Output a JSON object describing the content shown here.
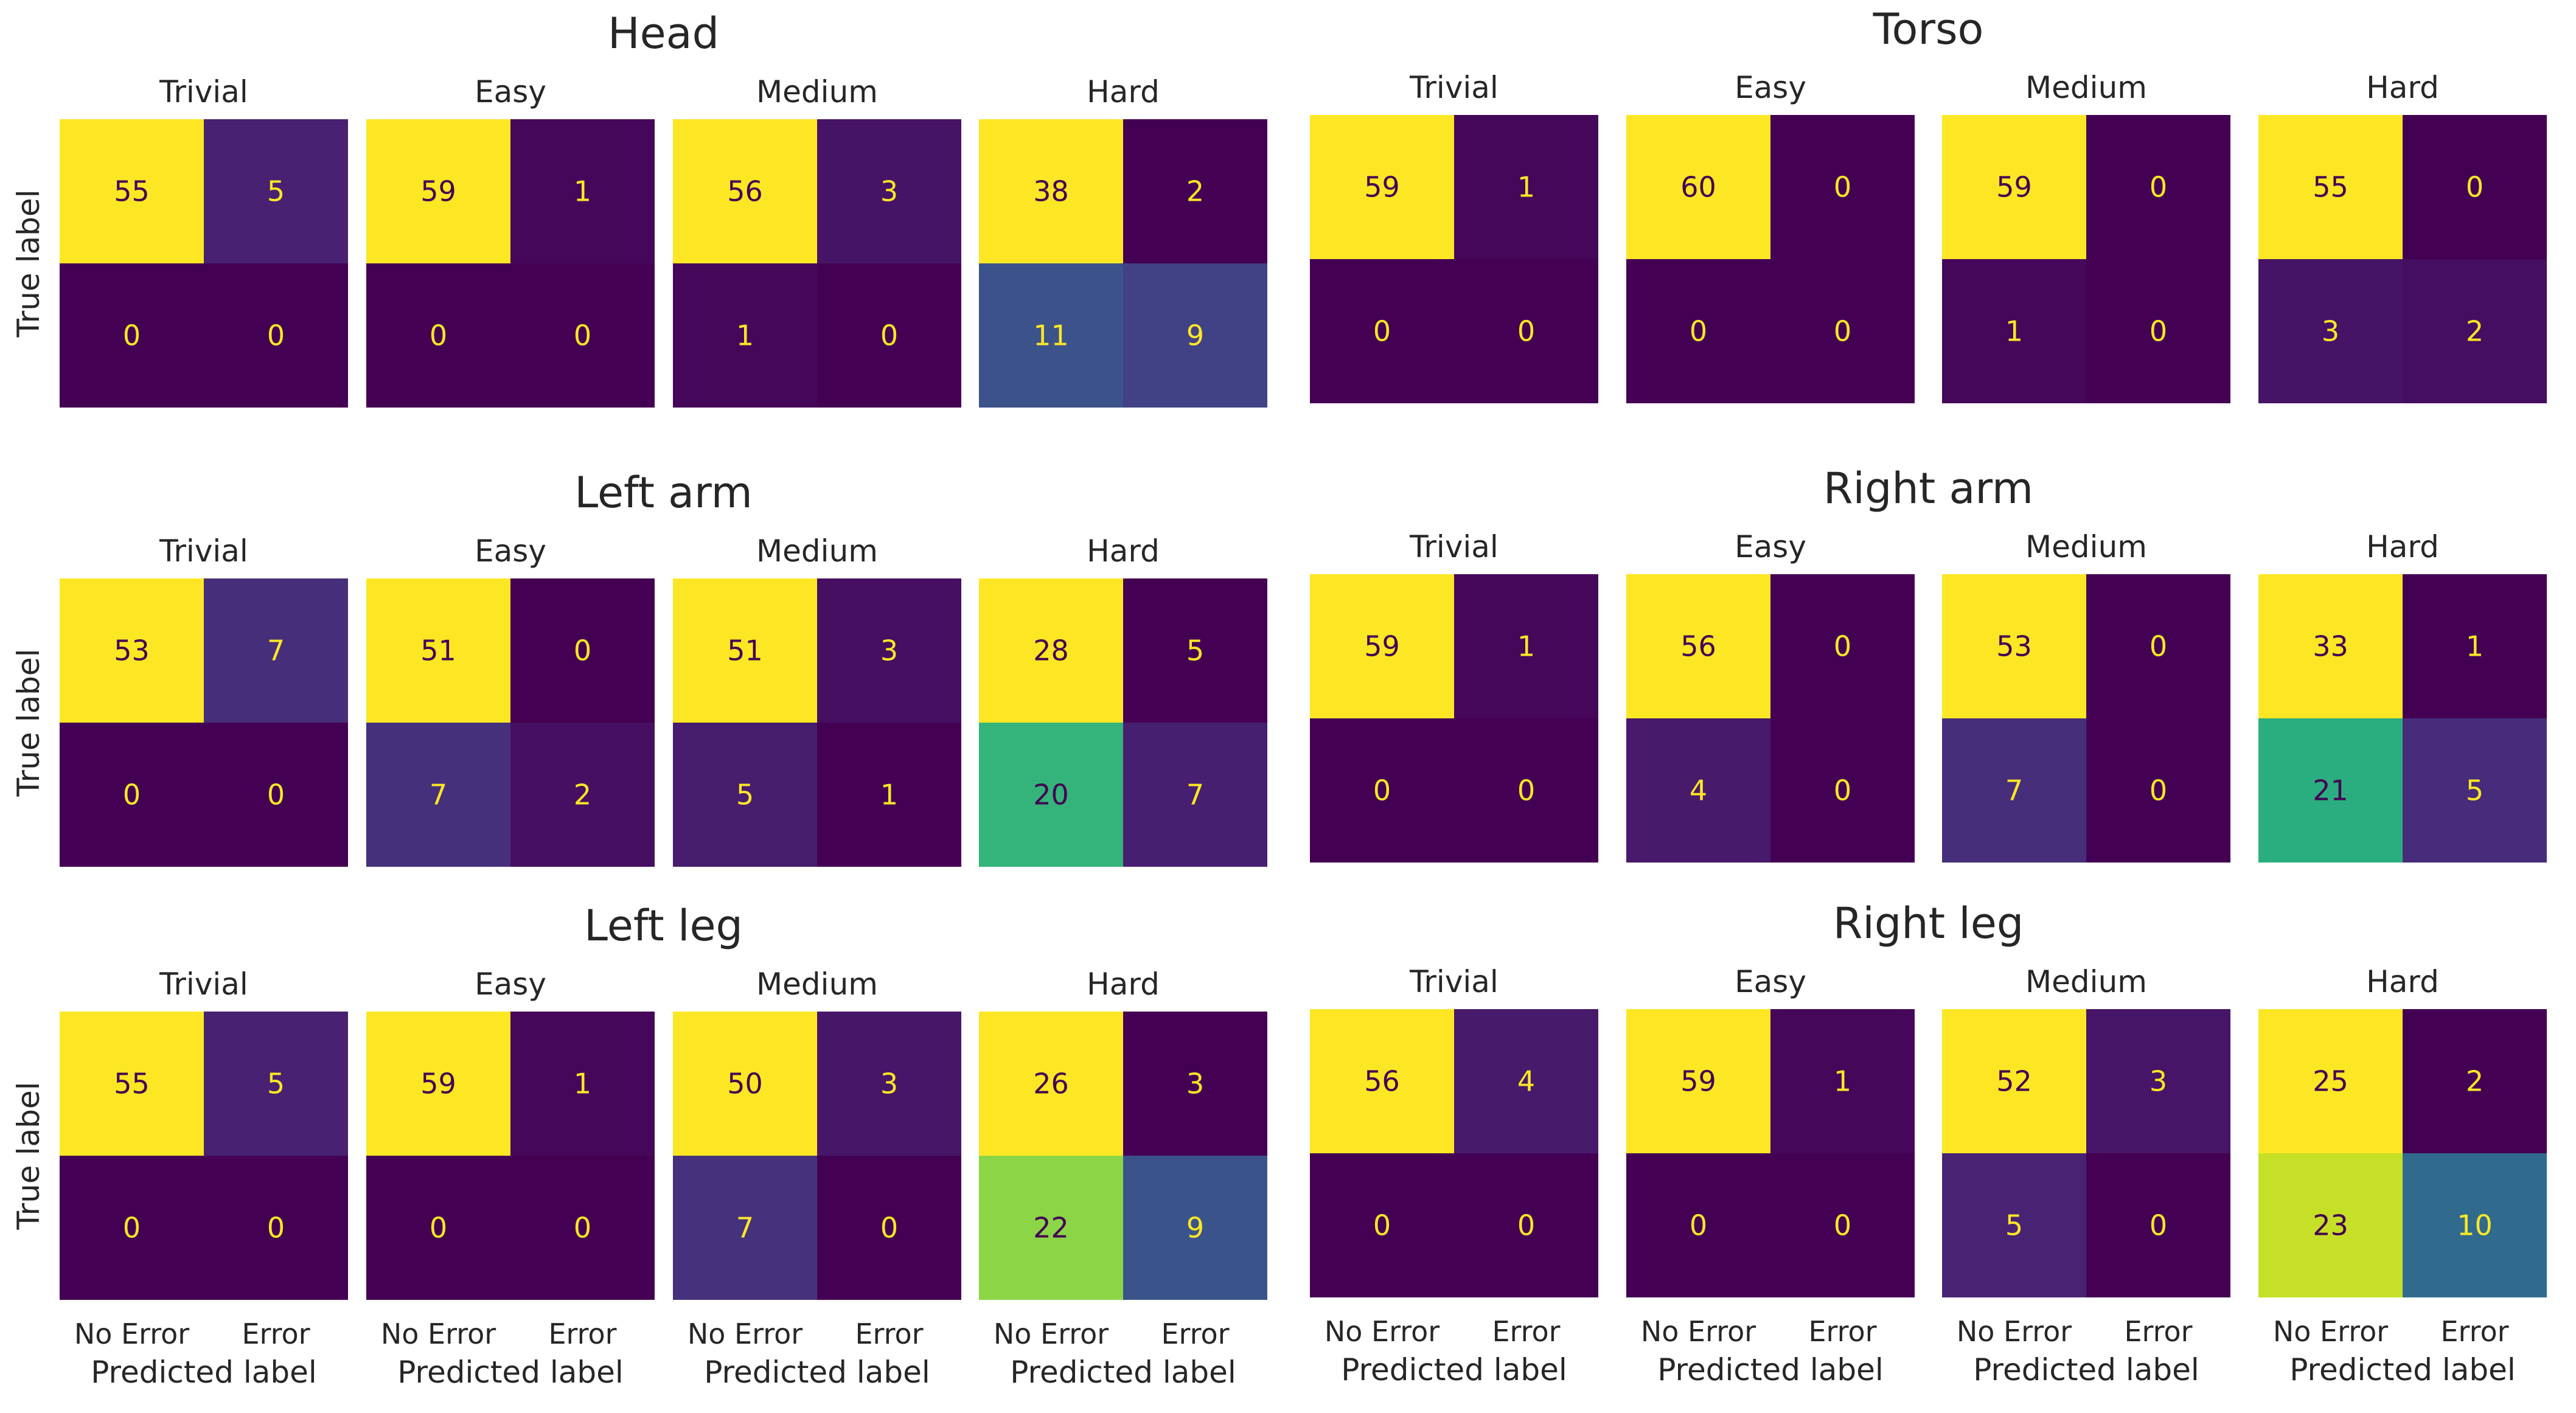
{
  "chart_data": {
    "type": "heatmap",
    "colormap": "viridis",
    "class_labels": [
      "No Error",
      "Error"
    ],
    "xlabel": "Predicted label",
    "ylabel": "True label",
    "difficulties": [
      "Trivial",
      "Easy",
      "Medium",
      "Hard"
    ],
    "panels": [
      {
        "title": "Head",
        "matrices": [
          {
            "difficulty": "Trivial",
            "values": [
              [
                55,
                5
              ],
              [
                0,
                0
              ]
            ]
          },
          {
            "difficulty": "Easy",
            "values": [
              [
                59,
                1
              ],
              [
                0,
                0
              ]
            ]
          },
          {
            "difficulty": "Medium",
            "values": [
              [
                56,
                3
              ],
              [
                1,
                0
              ]
            ]
          },
          {
            "difficulty": "Hard",
            "values": [
              [
                38,
                2
              ],
              [
                11,
                9
              ]
            ]
          }
        ]
      },
      {
        "title": "Torso",
        "matrices": [
          {
            "difficulty": "Trivial",
            "values": [
              [
                59,
                1
              ],
              [
                0,
                0
              ]
            ]
          },
          {
            "difficulty": "Easy",
            "values": [
              [
                60,
                0
              ],
              [
                0,
                0
              ]
            ]
          },
          {
            "difficulty": "Medium",
            "values": [
              [
                59,
                0
              ],
              [
                1,
                0
              ]
            ]
          },
          {
            "difficulty": "Hard",
            "values": [
              [
                55,
                0
              ],
              [
                3,
                2
              ]
            ]
          }
        ]
      },
      {
        "title": "Left arm",
        "matrices": [
          {
            "difficulty": "Trivial",
            "values": [
              [
                53,
                7
              ],
              [
                0,
                0
              ]
            ]
          },
          {
            "difficulty": "Easy",
            "values": [
              [
                51,
                0
              ],
              [
                7,
                2
              ]
            ]
          },
          {
            "difficulty": "Medium",
            "values": [
              [
                51,
                3
              ],
              [
                5,
                1
              ]
            ]
          },
          {
            "difficulty": "Hard",
            "values": [
              [
                28,
                5
              ],
              [
                20,
                7
              ]
            ]
          }
        ]
      },
      {
        "title": "Right arm",
        "matrices": [
          {
            "difficulty": "Trivial",
            "values": [
              [
                59,
                1
              ],
              [
                0,
                0
              ]
            ]
          },
          {
            "difficulty": "Easy",
            "values": [
              [
                56,
                0
              ],
              [
                4,
                0
              ]
            ]
          },
          {
            "difficulty": "Medium",
            "values": [
              [
                53,
                0
              ],
              [
                7,
                0
              ]
            ]
          },
          {
            "difficulty": "Hard",
            "values": [
              [
                33,
                1
              ],
              [
                21,
                5
              ]
            ]
          }
        ]
      },
      {
        "title": "Left leg",
        "matrices": [
          {
            "difficulty": "Trivial",
            "values": [
              [
                55,
                5
              ],
              [
                0,
                0
              ]
            ]
          },
          {
            "difficulty": "Easy",
            "values": [
              [
                59,
                1
              ],
              [
                0,
                0
              ]
            ]
          },
          {
            "difficulty": "Medium",
            "values": [
              [
                50,
                3
              ],
              [
                7,
                0
              ]
            ]
          },
          {
            "difficulty": "Hard",
            "values": [
              [
                26,
                3
              ],
              [
                22,
                9
              ]
            ]
          }
        ]
      },
      {
        "title": "Right leg",
        "matrices": [
          {
            "difficulty": "Trivial",
            "values": [
              [
                56,
                4
              ],
              [
                0,
                0
              ]
            ]
          },
          {
            "difficulty": "Easy",
            "values": [
              [
                59,
                1
              ],
              [
                0,
                0
              ]
            ]
          },
          {
            "difficulty": "Medium",
            "values": [
              [
                52,
                3
              ],
              [
                5,
                0
              ]
            ]
          },
          {
            "difficulty": "Hard",
            "values": [
              [
                25,
                2
              ],
              [
                23,
                10
              ]
            ]
          }
        ]
      }
    ]
  }
}
